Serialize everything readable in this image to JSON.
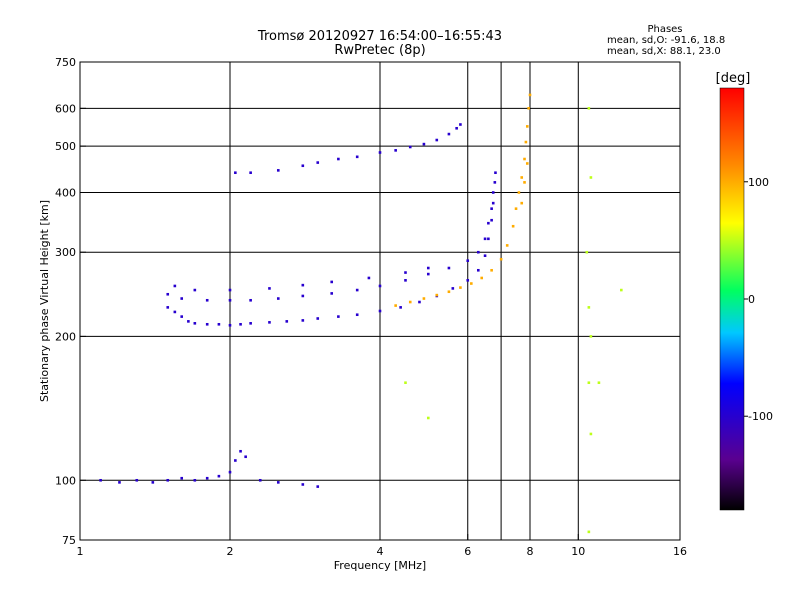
{
  "chart_data": {
    "type": "scatter",
    "title": "Tromsø 20120927 16:54:00–16:55:43",
    "subtitle": "RwPretec (8p)",
    "stats": {
      "heading": "Phases",
      "line1": "mean, sd,O: -91.6, 18.8",
      "line2": "mean, sd,X:  88.1, 23.0"
    },
    "xlabel": "Frequency [MHz]",
    "ylabel": "Stationary phase Virtual Height [km]",
    "x_scale": "log",
    "y_scale": "log",
    "xlim": [
      1,
      16
    ],
    "ylim": [
      75,
      750
    ],
    "x_ticks": [
      {
        "value": 1,
        "label": "1"
      },
      {
        "value": 2,
        "label": "2"
      },
      {
        "value": 4,
        "label": "4"
      },
      {
        "value": 6,
        "label": "6"
      },
      {
        "value": 8,
        "label": "8"
      },
      {
        "value": 10,
        "label": "10"
      },
      {
        "value": 16,
        "label": "16"
      }
    ],
    "y_ticks": [
      {
        "value": 75,
        "label": "75"
      },
      {
        "value": 100,
        "label": "100"
      },
      {
        "value": 200,
        "label": "200"
      },
      {
        "value": 300,
        "label": "300"
      },
      {
        "value": 400,
        "label": "400"
      },
      {
        "value": 500,
        "label": "500"
      },
      {
        "value": 600,
        "label": "600"
      },
      {
        "value": 750,
        "label": "750"
      }
    ],
    "x_gridlines": [
      2,
      4,
      6,
      7,
      8,
      10
    ],
    "y_gridlines": [
      100,
      200,
      300,
      400,
      500,
      600
    ],
    "grid": true,
    "colorbar": {
      "title": "[deg]",
      "range": [
        -180,
        180
      ],
      "ticks": [
        {
          "value": 100,
          "label": "100"
        },
        {
          "value": 0,
          "label": "0"
        },
        {
          "value": -100,
          "label": "-100"
        }
      ]
    },
    "series": [
      {
        "role": "o-mode-F-trace",
        "color_value": -100,
        "points": [
          [
            1.5,
            230
          ],
          [
            1.55,
            225
          ],
          [
            1.6,
            220
          ],
          [
            1.65,
            215
          ],
          [
            1.7,
            213
          ],
          [
            1.8,
            212
          ],
          [
            1.9,
            212
          ],
          [
            2.0,
            211
          ],
          [
            2.1,
            212
          ],
          [
            2.2,
            213
          ],
          [
            2.4,
            214
          ],
          [
            2.6,
            215
          ],
          [
            2.8,
            216
          ],
          [
            3.0,
            218
          ],
          [
            3.3,
            220
          ],
          [
            3.6,
            222
          ],
          [
            4.0,
            226
          ],
          [
            4.4,
            230
          ],
          [
            4.8,
            236
          ],
          [
            5.2,
            243
          ],
          [
            5.6,
            252
          ],
          [
            6.0,
            262
          ],
          [
            6.3,
            275
          ],
          [
            6.5,
            295
          ],
          [
            6.6,
            320
          ],
          [
            6.7,
            350
          ],
          [
            6.75,
            380
          ],
          [
            6.8,
            420
          ],
          [
            6.82,
            440
          ],
          [
            1.5,
            245
          ],
          [
            1.6,
            240
          ],
          [
            1.8,
            238
          ],
          [
            2.0,
            238
          ],
          [
            2.2,
            238
          ],
          [
            2.5,
            240
          ],
          [
            2.8,
            243
          ],
          [
            3.2,
            246
          ],
          [
            3.6,
            250
          ],
          [
            4.0,
            255
          ],
          [
            4.5,
            262
          ],
          [
            5.0,
            270
          ],
          [
            5.5,
            278
          ],
          [
            6.0,
            288
          ],
          [
            6.3,
            300
          ],
          [
            6.5,
            320
          ],
          [
            6.6,
            345
          ],
          [
            6.7,
            370
          ],
          [
            6.75,
            400
          ],
          [
            1.55,
            255
          ],
          [
            1.7,
            250
          ],
          [
            2.0,
            250
          ],
          [
            2.4,
            252
          ],
          [
            2.8,
            256
          ],
          [
            3.2,
            260
          ],
          [
            3.8,
            265
          ],
          [
            4.5,
            272
          ],
          [
            5.0,
            278
          ]
        ]
      },
      {
        "role": "x-mode-F-trace",
        "color_value": 100,
        "points": [
          [
            4.3,
            232
          ],
          [
            4.6,
            236
          ],
          [
            4.9,
            240
          ],
          [
            5.2,
            244
          ],
          [
            5.5,
            248
          ],
          [
            5.8,
            253
          ],
          [
            6.1,
            258
          ],
          [
            6.4,
            265
          ],
          [
            6.7,
            275
          ],
          [
            7.0,
            290
          ],
          [
            7.2,
            310
          ],
          [
            7.4,
            340
          ],
          [
            7.5,
            370
          ],
          [
            7.6,
            400
          ],
          [
            7.7,
            430
          ],
          [
            7.8,
            470
          ],
          [
            7.85,
            510
          ],
          [
            7.9,
            550
          ],
          [
            7.95,
            600
          ],
          [
            8.0,
            640
          ],
          [
            7.7,
            380
          ],
          [
            7.8,
            420
          ],
          [
            7.9,
            460
          ]
        ]
      },
      {
        "role": "upper-F-trace",
        "color_value": -100,
        "points": [
          [
            2.05,
            440
          ],
          [
            2.2,
            440
          ],
          [
            2.5,
            445
          ],
          [
            2.8,
            455
          ],
          [
            3.0,
            462
          ],
          [
            3.3,
            470
          ],
          [
            3.6,
            475
          ],
          [
            4.0,
            485
          ],
          [
            4.3,
            490
          ],
          [
            4.6,
            498
          ],
          [
            4.9,
            505
          ],
          [
            5.2,
            515
          ],
          [
            5.5,
            530
          ],
          [
            5.7,
            545
          ],
          [
            5.8,
            555
          ]
        ]
      },
      {
        "role": "e-layer-trace",
        "color_value": -100,
        "points": [
          [
            1.1,
            100
          ],
          [
            1.2,
            99
          ],
          [
            1.3,
            100
          ],
          [
            1.4,
            99
          ],
          [
            1.5,
            100
          ],
          [
            1.6,
            101
          ],
          [
            1.7,
            100
          ],
          [
            1.8,
            101
          ],
          [
            1.9,
            102
          ],
          [
            2.0,
            104
          ],
          [
            2.05,
            110
          ],
          [
            2.1,
            115
          ],
          [
            2.15,
            112
          ],
          [
            2.3,
            100
          ],
          [
            2.5,
            99
          ],
          [
            2.8,
            98
          ],
          [
            3.0,
            97
          ]
        ]
      },
      {
        "role": "scattered-points",
        "color_value": 50,
        "points": [
          [
            10.5,
            600
          ],
          [
            10.6,
            430
          ],
          [
            10.4,
            300
          ],
          [
            10.5,
            230
          ],
          [
            10.6,
            200
          ],
          [
            10.5,
            160
          ],
          [
            10.6,
            125
          ],
          [
            10.5,
            78
          ],
          [
            12.2,
            250
          ],
          [
            11.0,
            160
          ],
          [
            4.5,
            160
          ],
          [
            5.0,
            135
          ]
        ]
      }
    ]
  }
}
